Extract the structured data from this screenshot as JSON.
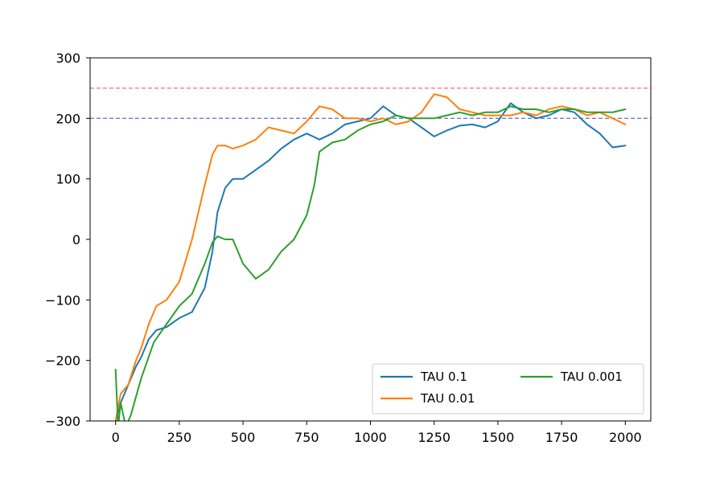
{
  "chart_data": {
    "type": "line",
    "title": "",
    "xlabel": "",
    "ylabel": "",
    "xlim": [
      -100,
      2100
    ],
    "ylim": [
      -300,
      300
    ],
    "x_ticks": [
      0,
      250,
      500,
      750,
      1000,
      1250,
      1500,
      1750,
      2000
    ],
    "x_tick_labels": [
      "0",
      "250",
      "500",
      "750",
      "1000",
      "1250",
      "1500",
      "1750",
      "2000"
    ],
    "y_ticks": [
      -300,
      -200,
      -100,
      0,
      100,
      200,
      300
    ],
    "y_tick_labels": [
      "−300",
      "−200",
      "−100",
      "0",
      "100",
      "200",
      "300"
    ],
    "grid": false,
    "legend": {
      "placement": "lower-right",
      "columns": 2
    },
    "reference_lines": [
      {
        "y": 250,
        "color": "#f08080",
        "style": "dashed"
      },
      {
        "y": 200,
        "color": "#7777cc",
        "style": "dashed"
      }
    ],
    "series": [
      {
        "name": "TAU 0.1",
        "color": "#1f77b4",
        "x": [
          0,
          20,
          50,
          80,
          100,
          130,
          160,
          200,
          250,
          300,
          350,
          380,
          400,
          430,
          460,
          500,
          550,
          600,
          650,
          700,
          750,
          800,
          850,
          900,
          950,
          1000,
          1050,
          1100,
          1150,
          1200,
          1250,
          1300,
          1350,
          1400,
          1450,
          1500,
          1550,
          1600,
          1650,
          1700,
          1750,
          1800,
          1850,
          1900,
          1950,
          2000
        ],
        "y": [
          -300,
          -270,
          -240,
          -210,
          -195,
          -165,
          -150,
          -145,
          -130,
          -120,
          -80,
          -20,
          45,
          85,
          100,
          100,
          115,
          130,
          150,
          165,
          175,
          165,
          175,
          190,
          195,
          200,
          220,
          205,
          200,
          185,
          170,
          180,
          188,
          190,
          185,
          195,
          225,
          210,
          200,
          205,
          215,
          210,
          190,
          175,
          152,
          155
        ]
      },
      {
        "name": "TAU 0.01",
        "color": "#ff7f0e",
        "x": [
          0,
          20,
          50,
          80,
          100,
          130,
          160,
          200,
          250,
          300,
          350,
          380,
          400,
          430,
          460,
          500,
          550,
          600,
          650,
          700,
          750,
          800,
          850,
          900,
          950,
          1000,
          1050,
          1100,
          1150,
          1200,
          1250,
          1300,
          1350,
          1400,
          1450,
          1500,
          1550,
          1600,
          1650,
          1700,
          1750,
          1800,
          1850,
          1900,
          1950,
          2000
        ],
        "y": [
          -300,
          -255,
          -240,
          -200,
          -180,
          -140,
          -110,
          -100,
          -70,
          0,
          90,
          140,
          155,
          155,
          150,
          155,
          165,
          185,
          180,
          175,
          195,
          220,
          215,
          200,
          200,
          195,
          200,
          190,
          195,
          210,
          240,
          235,
          215,
          210,
          205,
          205,
          205,
          210,
          205,
          215,
          220,
          215,
          205,
          210,
          200,
          190
        ]
      },
      {
        "name": "TAU 0.001",
        "color": "#2ca02c",
        "x": [
          0,
          10,
          20,
          40,
          60,
          100,
          150,
          200,
          250,
          300,
          350,
          380,
          400,
          430,
          460,
          500,
          550,
          600,
          650,
          700,
          750,
          780,
          800,
          850,
          900,
          950,
          1000,
          1050,
          1100,
          1150,
          1200,
          1250,
          1300,
          1350,
          1400,
          1450,
          1500,
          1550,
          1600,
          1650,
          1700,
          1750,
          1800,
          1850,
          1900,
          1950,
          2000
        ],
        "y": [
          -215,
          -310,
          -270,
          -310,
          -290,
          -230,
          -170,
          -140,
          -110,
          -90,
          -40,
          -5,
          5,
          0,
          0,
          -40,
          -65,
          -50,
          -20,
          0,
          40,
          90,
          145,
          160,
          165,
          180,
          190,
          195,
          205,
          200,
          200,
          200,
          205,
          210,
          205,
          210,
          210,
          220,
          215,
          215,
          210,
          215,
          215,
          210,
          210,
          210,
          215
        ]
      }
    ]
  }
}
